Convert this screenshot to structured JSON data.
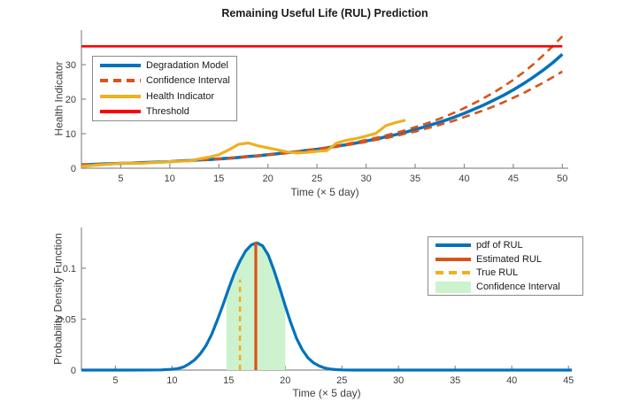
{
  "figure_title": "Remaining Useful Life (RUL) Prediction",
  "colors": {
    "model_blue": "#0072BD",
    "ci_orange": "#D95319",
    "health_yellow": "#EDB120",
    "threshold_red": "#FF0000",
    "ci_fill_green": "#CDF2CE",
    "axis_gray": "#8c8c8c",
    "tick_text": "#3d3d3d"
  },
  "chart_data": [
    {
      "type": "line",
      "name": "rul-prediction-chart",
      "title": "Remaining Useful Life (RUL) Prediction",
      "xlabel": "Time (× 5 day)",
      "ylabel": "Health Indicator",
      "xlim": [
        1,
        50.6
      ],
      "ylim": [
        0,
        40
      ],
      "xticks": [
        5,
        10,
        15,
        20,
        25,
        30,
        35,
        40,
        45,
        50
      ],
      "yticks": [
        0,
        10,
        20,
        30
      ],
      "grid": false,
      "legend_position": "top-left",
      "legend": [
        {
          "label": "Degradation Model",
          "color": "#0072BD",
          "style": "solid"
        },
        {
          "label": "Confidence Interval",
          "color": "#D95319",
          "style": "dashed"
        },
        {
          "label": "Health Indicator",
          "color": "#EDB120",
          "style": "solid"
        },
        {
          "label": "Threshold",
          "color": "#FF0000",
          "style": "solid"
        }
      ],
      "series": [
        {
          "name": "Degradation Model",
          "color": "#0072BD",
          "style": "solid",
          "width": 3.5,
          "x": [
            1,
            2,
            3,
            4,
            5,
            6,
            7,
            8,
            9,
            10,
            11,
            12,
            13,
            14,
            15,
            16,
            17,
            18,
            19,
            20,
            21,
            22,
            23,
            24,
            25,
            26,
            27,
            28,
            29,
            30,
            31,
            32,
            33,
            34,
            35,
            36,
            37,
            38,
            39,
            40,
            41,
            42,
            43,
            44,
            45,
            46,
            47,
            48,
            49,
            50
          ],
          "y": [
            1.0,
            1.1,
            1.2,
            1.3,
            1.4,
            1.5,
            1.6,
            1.7,
            1.8,
            1.9,
            2.1,
            2.2,
            2.4,
            2.5,
            2.7,
            2.9,
            3.1,
            3.4,
            3.6,
            3.9,
            4.2,
            4.5,
            4.8,
            5.2,
            5.5,
            5.9,
            6.4,
            6.8,
            7.3,
            7.9,
            8.4,
            9.1,
            9.7,
            10.4,
            11.2,
            12.0,
            12.9,
            13.8,
            14.8,
            15.9,
            17.1,
            18.3,
            19.7,
            21.1,
            22.7,
            24.4,
            26.3,
            28.3,
            30.5,
            33.0
          ]
        },
        {
          "name": "Confidence Interval Upper",
          "color": "#D95319",
          "style": "dashed",
          "width": 2.6,
          "dash": [
            9,
            6
          ],
          "x": [
            1,
            2,
            3,
            4,
            5,
            6,
            7,
            8,
            9,
            10,
            11,
            12,
            13,
            14,
            15,
            16,
            17,
            18,
            19,
            20,
            21,
            22,
            23,
            24,
            25,
            26,
            27,
            28,
            29,
            30,
            31,
            32,
            33,
            34,
            35,
            36,
            37,
            38,
            39,
            40,
            41,
            42,
            43,
            44,
            45,
            46,
            47,
            48,
            49,
            50
          ],
          "y": [
            1.0,
            1.1,
            1.2,
            1.3,
            1.4,
            1.5,
            1.6,
            1.7,
            1.8,
            1.9,
            2.1,
            2.2,
            2.4,
            2.6,
            2.7,
            2.9,
            3.2,
            3.4,
            3.6,
            3.9,
            4.2,
            4.5,
            4.9,
            5.2,
            5.6,
            6.0,
            6.5,
            7.0,
            7.6,
            8.2,
            8.8,
            9.5,
            10.2,
            11.0,
            11.9,
            12.8,
            13.8,
            14.9,
            16.1,
            17.4,
            18.8,
            20.3,
            21.9,
            23.7,
            25.6,
            27.7,
            30.0,
            32.6,
            35.3,
            38.2
          ]
        },
        {
          "name": "Confidence Interval Lower",
          "color": "#D95319",
          "style": "dashed",
          "width": 2.6,
          "dash": [
            9,
            6
          ],
          "x": [
            1,
            2,
            3,
            4,
            5,
            6,
            7,
            8,
            9,
            10,
            11,
            12,
            13,
            14,
            15,
            16,
            17,
            18,
            19,
            20,
            21,
            22,
            23,
            24,
            25,
            26,
            27,
            28,
            29,
            30,
            31,
            32,
            33,
            34,
            35,
            36,
            37,
            38,
            39,
            40,
            41,
            42,
            43,
            44,
            45,
            46,
            47,
            48,
            49,
            50
          ],
          "y": [
            1.0,
            1.1,
            1.2,
            1.3,
            1.4,
            1.5,
            1.6,
            1.7,
            1.8,
            1.9,
            2.1,
            2.2,
            2.4,
            2.5,
            2.7,
            2.9,
            3.1,
            3.3,
            3.6,
            3.8,
            4.1,
            4.4,
            4.7,
            5.1,
            5.4,
            5.8,
            6.2,
            6.7,
            7.1,
            7.6,
            8.2,
            8.7,
            9.3,
            10.0,
            10.6,
            11.4,
            12.1,
            13.0,
            13.8,
            14.8,
            15.8,
            16.8,
            17.9,
            19.1,
            20.4,
            21.7,
            23.2,
            24.7,
            26.3,
            28.0
          ]
        },
        {
          "name": "Health Indicator",
          "color": "#EDB120",
          "style": "solid",
          "width": 3.2,
          "x": [
            1,
            2,
            3,
            4,
            5,
            6,
            7,
            8,
            9,
            10,
            11,
            12,
            13,
            14,
            15,
            16,
            17,
            18,
            19,
            20,
            21,
            22,
            23,
            24,
            25,
            26,
            27,
            28,
            29,
            30,
            31,
            32,
            33,
            34
          ],
          "y": [
            0.5,
            0.8,
            1.0,
            1.2,
            1.4,
            1.5,
            1.4,
            1.6,
            1.7,
            1.9,
            2.0,
            2.1,
            2.7,
            3.2,
            3.9,
            5.3,
            6.9,
            7.3,
            6.5,
            5.9,
            5.3,
            4.7,
            4.4,
            4.6,
            4.9,
            5.1,
            7.3,
            8.1,
            8.6,
            9.3,
            10.1,
            12.3,
            13.2,
            13.9
          ]
        },
        {
          "name": "Threshold",
          "color": "#FF0000",
          "style": "solid",
          "width": 2.6,
          "x": [
            1,
            50
          ],
          "y": [
            35.3,
            35.3
          ]
        }
      ]
    },
    {
      "type": "line",
      "name": "rul-pdf-chart",
      "title": "",
      "xlabel": "Time (× 5 day)",
      "ylabel": "Probability Density Function",
      "xlim": [
        2,
        45.3
      ],
      "ylim": [
        0,
        0.14
      ],
      "xticks": [
        5,
        10,
        15,
        20,
        25,
        30,
        35,
        40,
        45
      ],
      "yticks": [
        0,
        0.05,
        0.1
      ],
      "grid": false,
      "legend_position": "top-right",
      "legend": [
        {
          "label": "pdf of RUL",
          "color": "#0072BD",
          "style": "solid"
        },
        {
          "label": "Estimated RUL",
          "color": "#D95319",
          "style": "solid"
        },
        {
          "label": "True RUL",
          "color": "#EDB120",
          "style": "dashed"
        },
        {
          "label": "Confidence Interval",
          "color": "#CDF2CE",
          "style": "patch"
        }
      ],
      "ci_region": {
        "from": 14.8,
        "to": 20.0,
        "fill": "#CDF2CE"
      },
      "estimated_rul": 17.4,
      "true_rul": 16.0,
      "pdf_peak": {
        "x": 17.5,
        "y": 0.125
      },
      "series": [
        {
          "name": "pdf of RUL",
          "color": "#0072BD",
          "style": "solid",
          "width": 3.2,
          "x": [
            2,
            6,
            9,
            10,
            10.5,
            11,
            11.5,
            12,
            12.5,
            13,
            13.5,
            14,
            14.5,
            15,
            15.5,
            16,
            16.5,
            17,
            17.5,
            18,
            18.5,
            19,
            19.5,
            20,
            20.5,
            21,
            21.5,
            22,
            22.5,
            23,
            23.5,
            24,
            24.5,
            25,
            26,
            28,
            32,
            38,
            45.3
          ],
          "y": [
            0,
            0,
            0.0002,
            0.0008,
            0.0015,
            0.003,
            0.006,
            0.01,
            0.016,
            0.024,
            0.035,
            0.049,
            0.064,
            0.08,
            0.095,
            0.107,
            0.117,
            0.123,
            0.125,
            0.122,
            0.113,
            0.098,
            0.081,
            0.063,
            0.046,
            0.031,
            0.02,
            0.012,
            0.007,
            0.004,
            0.002,
            0.001,
            0.0004,
            0.0002,
            0,
            0,
            0,
            0,
            0
          ]
        },
        {
          "name": "Estimated RUL",
          "color": "#D95319",
          "style": "solid",
          "width": 3.2,
          "x": [
            17.4,
            17.4
          ],
          "y": [
            0,
            0.126
          ]
        },
        {
          "name": "True RUL",
          "color": "#EDB120",
          "style": "dashed",
          "width": 2.6,
          "dash": [
            6,
            5
          ],
          "x": [
            16,
            16
          ],
          "y": [
            0,
            0.089
          ]
        }
      ]
    }
  ]
}
